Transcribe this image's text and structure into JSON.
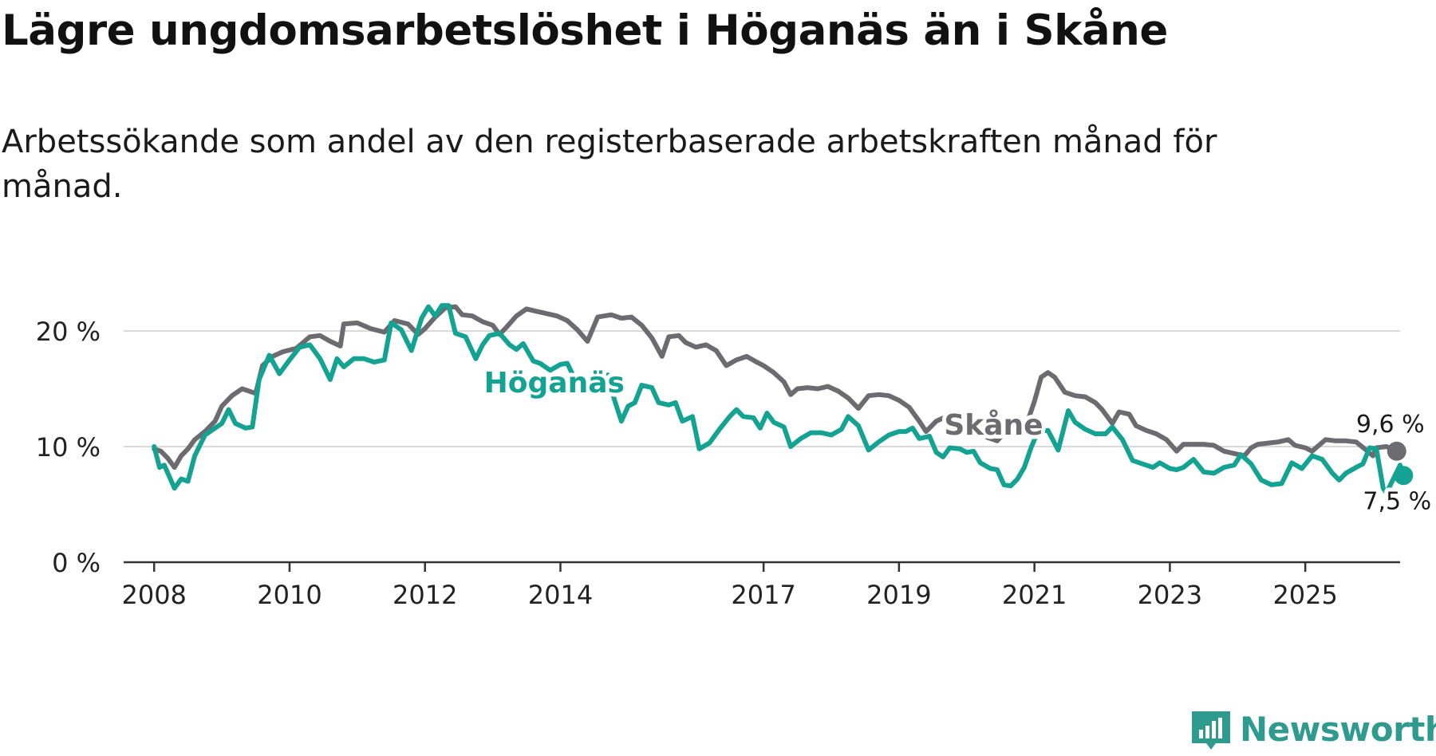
{
  "title": "Lägre ungdomsarbetslöshet i Höganäs än i Skåne",
  "subtitle": "Arbetssökande som andel av den registerbaserade arbetskraften månad för månad.",
  "brand": {
    "name": "Newsworthy",
    "color": "#2f9a8e"
  },
  "colors": {
    "hoganas": "#14a392",
    "skane": "#6b6b70",
    "grid": "#d9d9d9",
    "axis": "#333333"
  },
  "chart_data": {
    "type": "line",
    "title": "Lägre ungdomsarbetslöshet i Höganäs än i Skåne",
    "xlabel": "",
    "ylabel": "",
    "xlim": [
      2007.55,
      2026.4
    ],
    "ylim": [
      0,
      20
    ],
    "y_ticks": [
      0,
      10,
      20
    ],
    "y_tick_labels": [
      "0 %",
      "10 %",
      "20 %"
    ],
    "x_ticks": [
      2008,
      2010,
      2012,
      2014,
      2017,
      2019,
      2021,
      2023,
      2025
    ],
    "x_tick_labels": [
      "2008",
      "2010",
      "2012",
      "2014",
      "2017",
      "2019",
      "2021",
      "2023",
      "2025"
    ],
    "series": [
      {
        "name": "Skåne",
        "label": "Skåne",
        "end_label": "9,6 %",
        "end_value": 9.6,
        "points": [
          [
            2008.0,
            9.8
          ],
          [
            2008.1,
            9.6
          ],
          [
            2008.2,
            9.0
          ],
          [
            2008.3,
            8.2
          ],
          [
            2008.4,
            9.2
          ],
          [
            2008.5,
            9.8
          ],
          [
            2008.6,
            10.6
          ],
          [
            2008.75,
            11.3
          ],
          [
            2008.9,
            12.2
          ],
          [
            2009.0,
            13.5
          ],
          [
            2009.15,
            14.4
          ],
          [
            2009.3,
            15.0
          ],
          [
            2009.5,
            14.6
          ],
          [
            2009.6,
            17.0
          ],
          [
            2009.75,
            17.8
          ],
          [
            2009.9,
            18.2
          ],
          [
            2010.1,
            18.5
          ],
          [
            2010.3,
            19.5
          ],
          [
            2010.45,
            19.6
          ],
          [
            2010.6,
            19.1
          ],
          [
            2010.75,
            18.7
          ],
          [
            2010.8,
            20.6
          ],
          [
            2011.0,
            20.7
          ],
          [
            2011.2,
            20.2
          ],
          [
            2011.4,
            19.9
          ],
          [
            2011.55,
            20.9
          ],
          [
            2011.75,
            20.6
          ],
          [
            2011.9,
            19.7
          ],
          [
            2012.0,
            20.2
          ],
          [
            2012.15,
            21.2
          ],
          [
            2012.3,
            22.0
          ],
          [
            2012.45,
            22.1
          ],
          [
            2012.55,
            21.4
          ],
          [
            2012.7,
            21.3
          ],
          [
            2012.85,
            20.8
          ],
          [
            2013.0,
            20.5
          ],
          [
            2013.1,
            19.7
          ],
          [
            2013.2,
            20.3
          ],
          [
            2013.35,
            21.3
          ],
          [
            2013.5,
            21.9
          ],
          [
            2013.65,
            21.7
          ],
          [
            2013.8,
            21.5
          ],
          [
            2013.95,
            21.3
          ],
          [
            2014.1,
            20.9
          ],
          [
            2014.25,
            20.1
          ],
          [
            2014.4,
            19.1
          ],
          [
            2014.55,
            21.2
          ],
          [
            2014.75,
            21.4
          ],
          [
            2014.9,
            21.1
          ],
          [
            2015.05,
            21.2
          ],
          [
            2015.2,
            20.5
          ],
          [
            2015.35,
            19.4
          ],
          [
            2015.5,
            17.8
          ],
          [
            2015.6,
            19.5
          ],
          [
            2015.75,
            19.6
          ],
          [
            2015.85,
            19.0
          ],
          [
            2016.0,
            18.6
          ],
          [
            2016.15,
            18.8
          ],
          [
            2016.3,
            18.3
          ],
          [
            2016.45,
            17.0
          ],
          [
            2016.6,
            17.5
          ],
          [
            2016.75,
            17.8
          ],
          [
            2016.9,
            17.3
          ],
          [
            2017.0,
            17.0
          ],
          [
            2017.15,
            16.4
          ],
          [
            2017.3,
            15.6
          ],
          [
            2017.4,
            14.5
          ],
          [
            2017.5,
            15.0
          ],
          [
            2017.65,
            15.1
          ],
          [
            2017.8,
            15.0
          ],
          [
            2017.95,
            15.2
          ],
          [
            2018.1,
            14.8
          ],
          [
            2018.25,
            14.2
          ],
          [
            2018.4,
            13.3
          ],
          [
            2018.55,
            14.4
          ],
          [
            2018.7,
            14.5
          ],
          [
            2018.85,
            14.4
          ],
          [
            2019.0,
            14.0
          ],
          [
            2019.15,
            13.4
          ],
          [
            2019.3,
            12.2
          ],
          [
            2019.4,
            11.3
          ],
          [
            2019.55,
            12.2
          ],
          [
            2019.7,
            12.6
          ],
          [
            2019.85,
            12.3
          ],
          [
            2020.0,
            11.7
          ],
          [
            2020.15,
            11.6
          ],
          [
            2020.3,
            10.8
          ],
          [
            2020.45,
            10.5
          ],
          [
            2020.6,
            11.5
          ],
          [
            2020.75,
            12.0
          ],
          [
            2020.9,
            12.2
          ],
          [
            2021.0,
            13.9
          ],
          [
            2021.1,
            16.0
          ],
          [
            2021.2,
            16.4
          ],
          [
            2021.3,
            16.0
          ],
          [
            2021.45,
            14.7
          ],
          [
            2021.6,
            14.4
          ],
          [
            2021.75,
            14.3
          ],
          [
            2021.9,
            13.8
          ],
          [
            2022.0,
            13.2
          ],
          [
            2022.15,
            12.0
          ],
          [
            2022.25,
            13.0
          ],
          [
            2022.4,
            12.8
          ],
          [
            2022.5,
            11.8
          ],
          [
            2022.65,
            11.4
          ],
          [
            2022.8,
            11.1
          ],
          [
            2022.95,
            10.6
          ],
          [
            2023.1,
            9.6
          ],
          [
            2023.2,
            10.2
          ],
          [
            2023.35,
            10.2
          ],
          [
            2023.5,
            10.2
          ],
          [
            2023.65,
            10.1
          ],
          [
            2023.8,
            9.6
          ],
          [
            2023.95,
            9.4
          ],
          [
            2024.1,
            9.2
          ],
          [
            2024.2,
            9.9
          ],
          [
            2024.3,
            10.2
          ],
          [
            2024.45,
            10.3
          ],
          [
            2024.6,
            10.4
          ],
          [
            2024.75,
            10.6
          ],
          [
            2024.85,
            10.1
          ],
          [
            2025.0,
            9.9
          ],
          [
            2025.1,
            9.6
          ],
          [
            2025.2,
            10.1
          ],
          [
            2025.3,
            10.6
          ],
          [
            2025.45,
            10.5
          ],
          [
            2025.6,
            10.5
          ],
          [
            2025.75,
            10.4
          ],
          [
            2025.9,
            9.7
          ],
          [
            2026.0,
            9.2
          ],
          [
            2026.05,
            9.9
          ],
          [
            2026.2,
            10.0
          ],
          [
            2026.35,
            9.6
          ]
        ]
      },
      {
        "name": "Höganäs",
        "label": "Höganäs",
        "end_label": "7,5 %",
        "end_value": 7.5,
        "points": [
          [
            2008.0,
            10.0
          ],
          [
            2008.08,
            8.2
          ],
          [
            2008.15,
            8.4
          ],
          [
            2008.3,
            6.4
          ],
          [
            2008.4,
            7.2
          ],
          [
            2008.5,
            7.0
          ],
          [
            2008.6,
            9.2
          ],
          [
            2008.75,
            11.0
          ],
          [
            2008.9,
            11.6
          ],
          [
            2009.0,
            12.0
          ],
          [
            2009.1,
            13.2
          ],
          [
            2009.2,
            12.0
          ],
          [
            2009.35,
            11.6
          ],
          [
            2009.45,
            11.7
          ],
          [
            2009.55,
            15.8
          ],
          [
            2009.7,
            17.9
          ],
          [
            2009.85,
            16.3
          ],
          [
            2010.0,
            17.5
          ],
          [
            2010.15,
            18.6
          ],
          [
            2010.3,
            18.8
          ],
          [
            2010.45,
            17.6
          ],
          [
            2010.6,
            15.8
          ],
          [
            2010.7,
            17.6
          ],
          [
            2010.8,
            16.9
          ],
          [
            2010.95,
            17.6
          ],
          [
            2011.1,
            17.6
          ],
          [
            2011.25,
            17.3
          ],
          [
            2011.4,
            17.5
          ],
          [
            2011.5,
            20.7
          ],
          [
            2011.65,
            20.1
          ],
          [
            2011.8,
            18.3
          ],
          [
            2011.95,
            21.1
          ],
          [
            2012.05,
            22.1
          ],
          [
            2012.15,
            21.3
          ],
          [
            2012.25,
            22.2
          ],
          [
            2012.35,
            22.2
          ],
          [
            2012.45,
            19.8
          ],
          [
            2012.6,
            19.5
          ],
          [
            2012.75,
            17.6
          ],
          [
            2012.85,
            18.8
          ],
          [
            2012.95,
            19.6
          ],
          [
            2013.1,
            19.8
          ],
          [
            2013.25,
            18.8
          ],
          [
            2013.35,
            18.4
          ],
          [
            2013.45,
            18.9
          ],
          [
            2013.6,
            17.4
          ],
          [
            2013.7,
            17.2
          ],
          [
            2013.85,
            16.6
          ],
          [
            2014.0,
            17.1
          ],
          [
            2014.1,
            17.2
          ],
          [
            2014.2,
            16.0
          ],
          [
            2014.3,
            15.0
          ],
          [
            2014.45,
            15.9
          ],
          [
            2014.55,
            15.4
          ],
          [
            2014.7,
            16.2
          ],
          [
            2014.8,
            14.0
          ],
          [
            2014.9,
            12.2
          ],
          [
            2015.0,
            13.5
          ],
          [
            2015.1,
            13.8
          ],
          [
            2015.2,
            15.3
          ],
          [
            2015.35,
            15.1
          ],
          [
            2015.45,
            13.8
          ],
          [
            2015.6,
            13.6
          ],
          [
            2015.7,
            13.8
          ],
          [
            2015.8,
            12.2
          ],
          [
            2015.95,
            12.6
          ],
          [
            2016.05,
            9.8
          ],
          [
            2016.2,
            10.3
          ],
          [
            2016.35,
            11.5
          ],
          [
            2016.5,
            12.6
          ],
          [
            2016.6,
            13.2
          ],
          [
            2016.7,
            12.6
          ],
          [
            2016.85,
            12.5
          ],
          [
            2016.95,
            11.6
          ],
          [
            2017.05,
            12.9
          ],
          [
            2017.15,
            12.1
          ],
          [
            2017.3,
            11.7
          ],
          [
            2017.4,
            10.0
          ],
          [
            2017.55,
            10.7
          ],
          [
            2017.7,
            11.2
          ],
          [
            2017.85,
            11.2
          ],
          [
            2018.0,
            11.0
          ],
          [
            2018.15,
            11.5
          ],
          [
            2018.25,
            12.6
          ],
          [
            2018.4,
            11.8
          ],
          [
            2018.55,
            9.7
          ],
          [
            2018.7,
            10.4
          ],
          [
            2018.85,
            11.0
          ],
          [
            2019.0,
            11.3
          ],
          [
            2019.1,
            11.3
          ],
          [
            2019.2,
            11.6
          ],
          [
            2019.3,
            10.7
          ],
          [
            2019.45,
            10.9
          ],
          [
            2019.55,
            9.5
          ],
          [
            2019.65,
            9.1
          ],
          [
            2019.75,
            9.9
          ],
          [
            2019.9,
            9.8
          ],
          [
            2020.0,
            9.5
          ],
          [
            2020.1,
            9.6
          ],
          [
            2020.2,
            8.6
          ],
          [
            2020.35,
            8.1
          ],
          [
            2020.45,
            8.0
          ],
          [
            2020.55,
            6.7
          ],
          [
            2020.65,
            6.6
          ],
          [
            2020.75,
            7.2
          ],
          [
            2020.85,
            8.2
          ],
          [
            2020.95,
            9.9
          ],
          [
            2021.05,
            11.3
          ],
          [
            2021.2,
            11.4
          ],
          [
            2021.35,
            9.7
          ],
          [
            2021.5,
            13.1
          ],
          [
            2021.6,
            12.1
          ],
          [
            2021.75,
            11.5
          ],
          [
            2021.9,
            11.1
          ],
          [
            2022.05,
            11.1
          ],
          [
            2022.15,
            11.7
          ],
          [
            2022.3,
            10.6
          ],
          [
            2022.45,
            8.8
          ],
          [
            2022.6,
            8.5
          ],
          [
            2022.75,
            8.2
          ],
          [
            2022.85,
            8.6
          ],
          [
            2023.0,
            8.1
          ],
          [
            2023.1,
            8.0
          ],
          [
            2023.2,
            8.2
          ],
          [
            2023.35,
            8.9
          ],
          [
            2023.5,
            7.8
          ],
          [
            2023.65,
            7.7
          ],
          [
            2023.8,
            8.2
          ],
          [
            2023.95,
            8.4
          ],
          [
            2024.05,
            9.3
          ],
          [
            2024.2,
            8.5
          ],
          [
            2024.35,
            7.1
          ],
          [
            2024.5,
            6.7
          ],
          [
            2024.65,
            6.8
          ],
          [
            2024.8,
            8.6
          ],
          [
            2024.95,
            8.1
          ],
          [
            2025.1,
            9.2
          ],
          [
            2025.25,
            8.9
          ],
          [
            2025.4,
            7.7
          ],
          [
            2025.5,
            7.1
          ],
          [
            2025.6,
            7.7
          ],
          [
            2025.75,
            8.2
          ],
          [
            2025.85,
            8.5
          ],
          [
            2025.95,
            9.9
          ],
          [
            2026.05,
            9.8
          ],
          [
            2026.15,
            6.4
          ],
          [
            2026.2,
            6.0
          ],
          [
            2026.3,
            7.2
          ],
          [
            2026.4,
            8.4
          ],
          [
            2026.45,
            7.5
          ]
        ]
      }
    ]
  }
}
